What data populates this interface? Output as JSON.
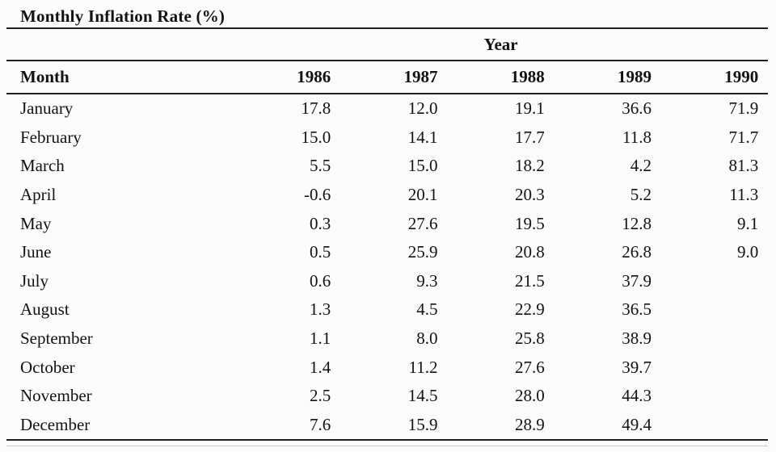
{
  "title": "Monthly Inflation Rate (%)",
  "table": {
    "spanner_label": "Year",
    "month_header": "Month",
    "years": [
      "1986",
      "1987",
      "1988",
      "1989",
      "1990"
    ],
    "rows": [
      {
        "month": "January",
        "values": [
          "17.8",
          "12.0",
          "19.1",
          "36.6",
          "71.9"
        ]
      },
      {
        "month": "February",
        "values": [
          "15.0",
          "14.1",
          "17.7",
          "11.8",
          "71.7"
        ]
      },
      {
        "month": "March",
        "values": [
          "5.5",
          "15.0",
          "18.2",
          "4.2",
          "81.3"
        ]
      },
      {
        "month": "April",
        "values": [
          "-0.6",
          "20.1",
          "20.3",
          "5.2",
          "11.3"
        ]
      },
      {
        "month": "May",
        "values": [
          "0.3",
          "27.6",
          "19.5",
          "12.8",
          "9.1"
        ]
      },
      {
        "month": "June",
        "values": [
          "0.5",
          "25.9",
          "20.8",
          "26.8",
          "9.0"
        ]
      },
      {
        "month": "July",
        "values": [
          "0.6",
          "9.3",
          "21.5",
          "37.9",
          ""
        ]
      },
      {
        "month": "August",
        "values": [
          "1.3",
          "4.5",
          "22.9",
          "36.5",
          ""
        ]
      },
      {
        "month": "September",
        "values": [
          "1.1",
          "8.0",
          "25.8",
          "38.9",
          ""
        ]
      },
      {
        "month": "October",
        "values": [
          "1.4",
          "11.2",
          "27.6",
          "39.7",
          ""
        ]
      },
      {
        "month": "November",
        "values": [
          "2.5",
          "14.5",
          "28.0",
          "44.3",
          ""
        ]
      },
      {
        "month": "December",
        "values": [
          "7.6",
          "15.9",
          "28.9",
          "49.4",
          ""
        ]
      }
    ]
  },
  "colors": {
    "background": "#fbfbfb",
    "text": "#121212",
    "rule": "#1f1f1f",
    "thin_rule": "#c9c9c9"
  }
}
